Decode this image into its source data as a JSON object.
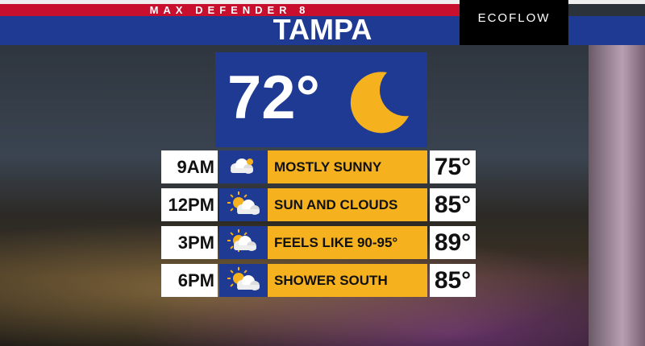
{
  "header": {
    "brand": "MAX DEFENDER 8",
    "title": "TAMPA",
    "sponsor": "ECOFLOW"
  },
  "current": {
    "temperature": "72°"
  },
  "forecast": [
    {
      "time": "9AM",
      "condition": "MOSTLY SUNNY",
      "temperature": "75°"
    },
    {
      "time": "12PM",
      "condition": "SUN AND CLOUDS",
      "temperature": "85°"
    },
    {
      "time": "3PM",
      "condition": "FEELS LIKE 90-95°",
      "temperature": "89°"
    },
    {
      "time": "6PM",
      "condition": "SHOWER SOUTH",
      "temperature": "85°"
    }
  ]
}
